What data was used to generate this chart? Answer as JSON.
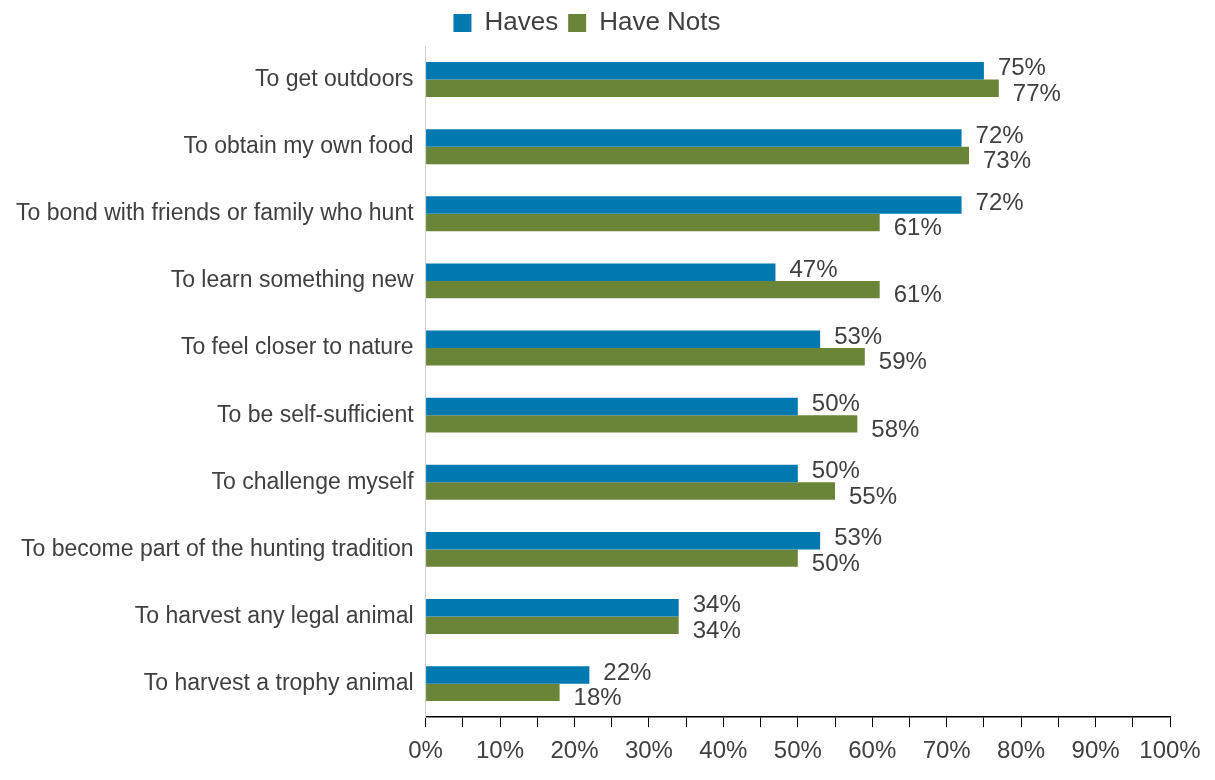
{
  "chart_data": {
    "type": "bar",
    "orientation": "horizontal",
    "categories": [
      "To get outdoors",
      "To obtain my own food",
      "To bond with friends or family who hunt",
      "To learn something new",
      "To feel closer to nature",
      "To be self-sufficient",
      "To challenge myself",
      "To become part of the hunting tradition",
      "To harvest any legal animal",
      "To harvest a trophy animal"
    ],
    "series": [
      {
        "name": "Haves",
        "color": "#0079b0",
        "values": [
          75,
          72,
          72,
          47,
          53,
          50,
          50,
          53,
          34,
          22
        ],
        "value_labels": [
          "75%",
          "72%",
          "72%",
          "47%",
          "53%",
          "50%",
          "50%",
          "53%",
          "34%",
          "22%"
        ]
      },
      {
        "name": "Have Nots",
        "color": "#6a8438",
        "values": [
          77,
          73,
          61,
          61,
          59,
          58,
          55,
          50,
          34,
          18
        ],
        "value_labels": [
          "77%",
          "73%",
          "61%",
          "61%",
          "59%",
          "58%",
          "55%",
          "50%",
          "34%",
          "18%"
        ]
      }
    ],
    "xlim": [
      0,
      100
    ],
    "xticks": [
      {
        "value": 0,
        "label": "0%"
      },
      {
        "value": 5,
        "label": null
      },
      {
        "value": 10,
        "label": "10%"
      },
      {
        "value": 15,
        "label": null
      },
      {
        "value": 20,
        "label": "20%"
      },
      {
        "value": 25,
        "label": null
      },
      {
        "value": 30,
        "label": "30%"
      },
      {
        "value": 35,
        "label": null
      },
      {
        "value": 40,
        "label": "40%"
      },
      {
        "value": 45,
        "label": null
      },
      {
        "value": 50,
        "label": "50%"
      },
      {
        "value": 55,
        "label": null
      },
      {
        "value": 60,
        "label": "60%"
      },
      {
        "value": 65,
        "label": null
      },
      {
        "value": 70,
        "label": "70%"
      },
      {
        "value": 75,
        "label": null
      },
      {
        "value": 80,
        "label": "80%"
      },
      {
        "value": 85,
        "label": null
      },
      {
        "value": 90,
        "label": "90%"
      },
      {
        "value": 95,
        "label": null
      },
      {
        "value": 100,
        "label": "100%"
      }
    ],
    "grid": false,
    "legend": "top"
  }
}
